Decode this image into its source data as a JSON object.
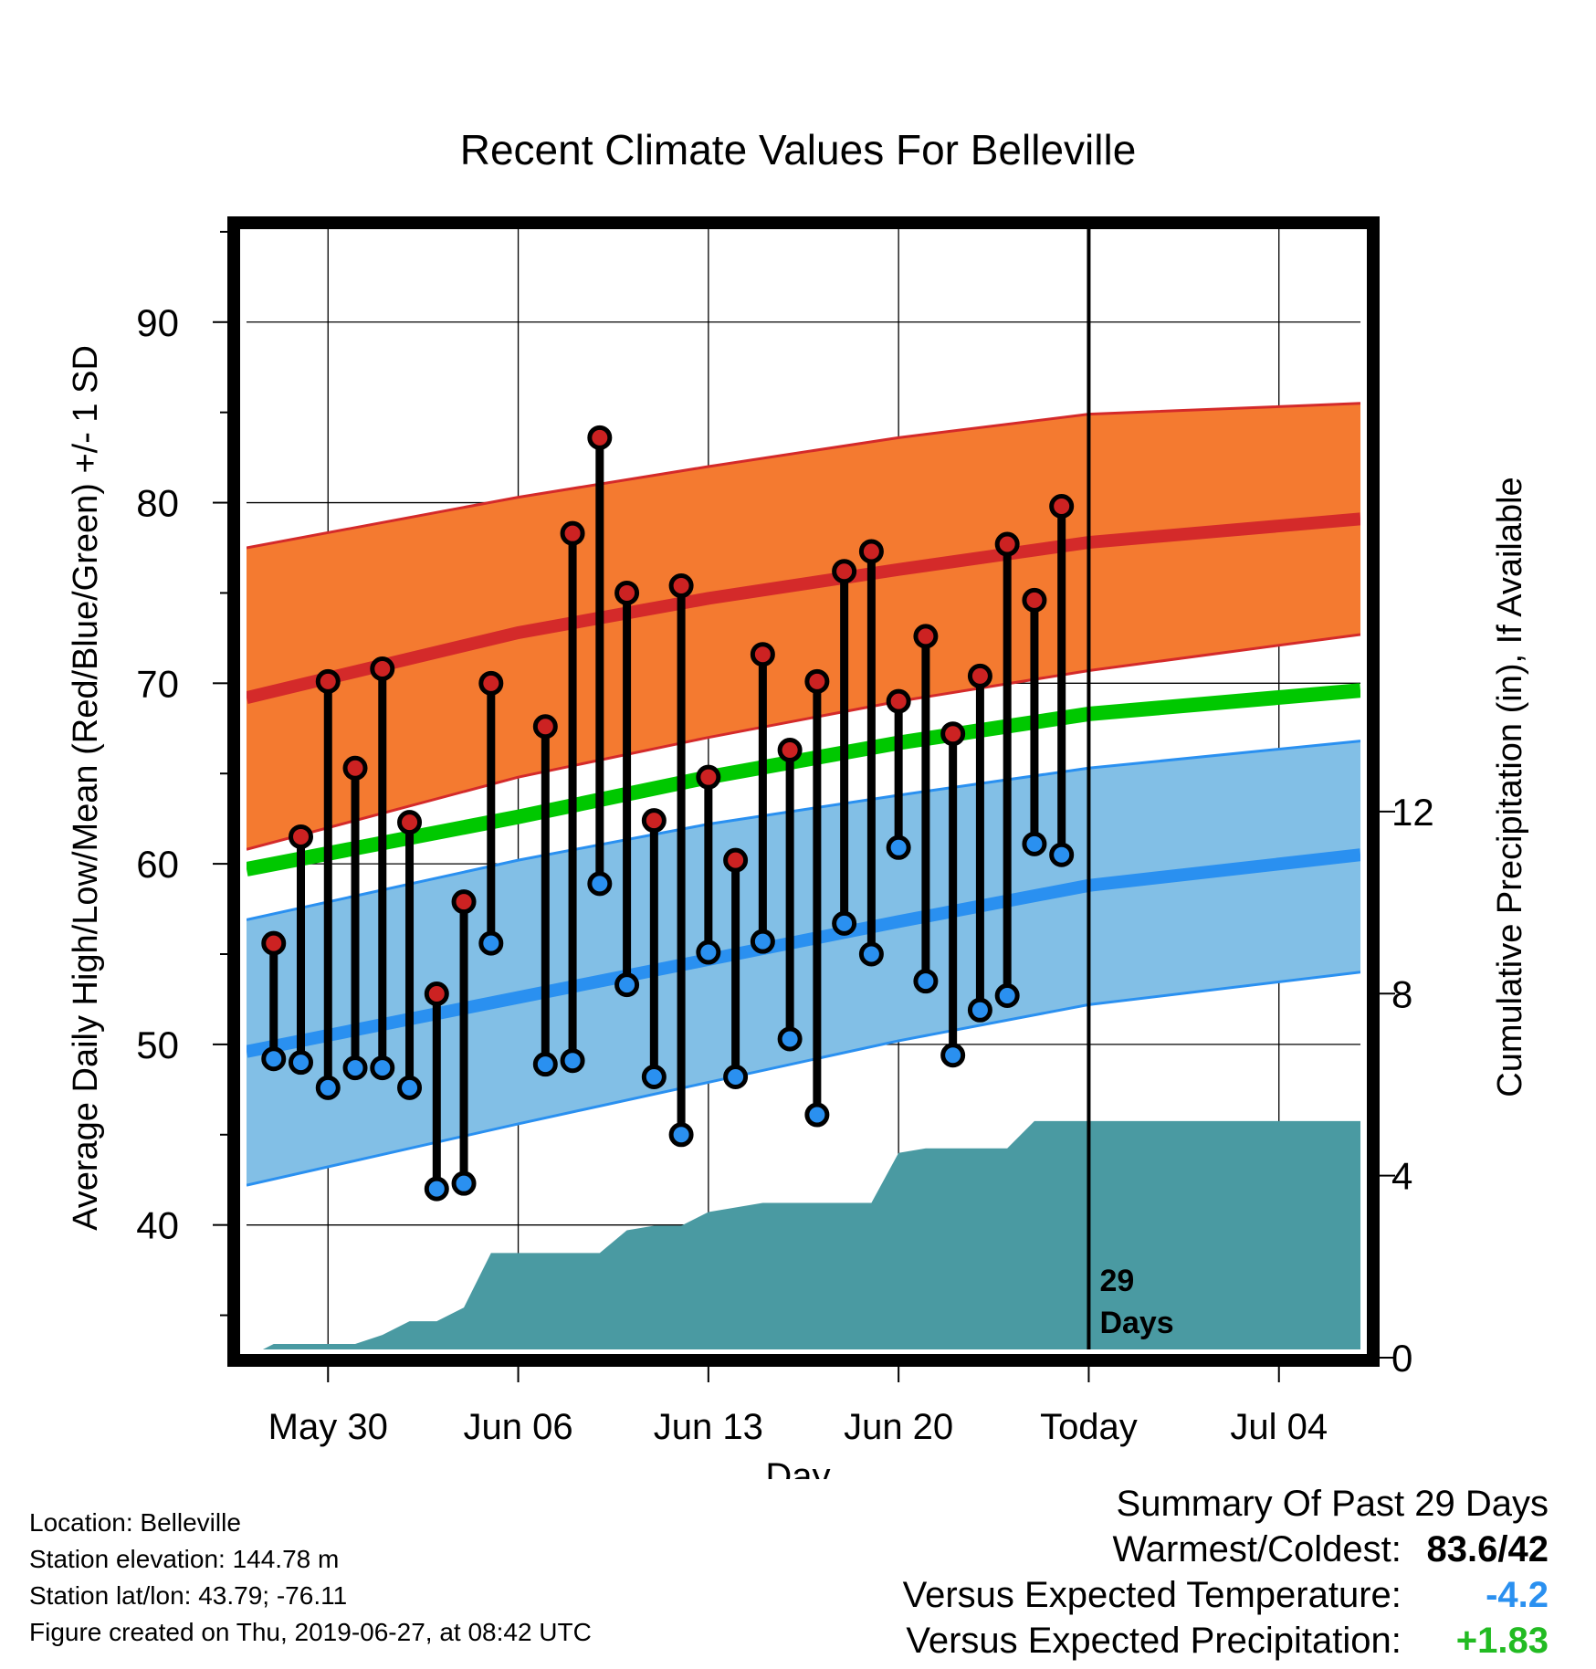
{
  "chart_data": {
    "type": "line",
    "title": "Recent Climate Values For Belleville",
    "xlabel": "Day",
    "ylabel": "Average Daily High/Low/Mean (Red/Blue/Green) +/- 1 SD",
    "y2label": "Cumulative Precipitation (in), If Available",
    "xlim": [
      "2019-05-27",
      "2019-07-07"
    ],
    "ylim": [
      32.5,
      95.5
    ],
    "y2lim": [
      0,
      25
    ],
    "x_ticks": [
      "2019-05-30",
      "2019-06-06",
      "2019-06-13",
      "2019-06-20",
      "2019-06-27",
      "2019-07-04"
    ],
    "x_tick_labels": [
      "May 30",
      "Jun 06",
      "Jun 13",
      "Jun 20",
      "Today",
      "Jul 04"
    ],
    "y_ticks": [
      40,
      50,
      60,
      70,
      80,
      90
    ],
    "y2_ticks": [
      0,
      4,
      8,
      12
    ],
    "grid": true,
    "today": "2019-06-27",
    "today_label": [
      "29",
      "Days"
    ],
    "colors": {
      "high_band": "#f47a30",
      "high_mean": "#d42a2a",
      "low_band": "#82bfe6",
      "low_mean": "#2a90f0",
      "mean": "#00c800",
      "precip": "#4a9aa2",
      "high_marker": "#cc2222",
      "low_marker": "#2a90f0"
    },
    "normals": {
      "x": [
        "2019-05-27",
        "2019-06-06",
        "2019-06-13",
        "2019-06-20",
        "2019-06-27",
        "2019-07-07"
      ],
      "high_upper": [
        77.5,
        80.3,
        82.0,
        83.6,
        84.9,
        85.5
      ],
      "high_mean": [
        69.2,
        72.8,
        74.7,
        76.3,
        77.8,
        79.1
      ],
      "high_lower": [
        60.8,
        64.8,
        67.0,
        69.0,
        70.7,
        72.7
      ],
      "mean": [
        59.7,
        62.6,
        64.8,
        66.7,
        68.3,
        69.6
      ],
      "low_upper": [
        56.9,
        60.2,
        62.2,
        63.8,
        65.3,
        66.8
      ],
      "low_mean": [
        49.6,
        52.6,
        54.7,
        56.8,
        58.8,
        60.5
      ],
      "low_lower": [
        42.2,
        45.6,
        47.9,
        50.2,
        52.2,
        54.0
      ]
    },
    "series": [
      {
        "name": "High",
        "x": [
          "2019-05-28",
          "2019-05-29",
          "2019-05-30",
          "2019-05-31",
          "2019-06-01",
          "2019-06-02",
          "2019-06-03",
          "2019-06-04",
          "2019-06-05",
          "2019-06-06",
          "2019-06-07",
          "2019-06-08",
          "2019-06-09",
          "2019-06-10",
          "2019-06-11",
          "2019-06-12",
          "2019-06-13",
          "2019-06-14",
          "2019-06-15",
          "2019-06-16",
          "2019-06-17",
          "2019-06-18",
          "2019-06-19",
          "2019-06-20",
          "2019-06-21",
          "2019-06-22",
          "2019-06-23",
          "2019-06-24",
          "2019-06-25",
          "2019-06-26"
        ],
        "values": [
          55.6,
          61.5,
          70.1,
          65.3,
          70.8,
          62.3,
          52.8,
          57.9,
          70.0,
          null,
          67.6,
          78.3,
          83.6,
          75.0,
          62.4,
          75.4,
          64.8,
          60.2,
          71.6,
          66.3,
          70.1,
          76.2,
          77.3,
          69.0,
          72.6,
          67.2,
          70.4,
          77.7,
          74.6,
          79.8
        ]
      },
      {
        "name": "Low",
        "x": [
          "2019-05-28",
          "2019-05-29",
          "2019-05-30",
          "2019-05-31",
          "2019-06-01",
          "2019-06-02",
          "2019-06-03",
          "2019-06-04",
          "2019-06-05",
          "2019-06-06",
          "2019-06-07",
          "2019-06-08",
          "2019-06-09",
          "2019-06-10",
          "2019-06-11",
          "2019-06-12",
          "2019-06-13",
          "2019-06-14",
          "2019-06-15",
          "2019-06-16",
          "2019-06-17",
          "2019-06-18",
          "2019-06-19",
          "2019-06-20",
          "2019-06-21",
          "2019-06-22",
          "2019-06-23",
          "2019-06-24",
          "2019-06-25",
          "2019-06-26"
        ],
        "values": [
          49.2,
          49.0,
          47.6,
          48.7,
          48.7,
          47.6,
          42.0,
          42.3,
          55.6,
          null,
          48.9,
          49.1,
          58.9,
          53.3,
          48.2,
          45.0,
          55.1,
          48.2,
          55.7,
          50.3,
          46.1,
          56.7,
          55.0,
          60.9,
          53.5,
          49.4,
          51.9,
          52.7,
          61.1,
          60.5
        ]
      }
    ],
    "precip": {
      "x": [
        "2019-05-27",
        "2019-05-28",
        "2019-05-29",
        "2019-05-30",
        "2019-05-31",
        "2019-06-01",
        "2019-06-02",
        "2019-06-03",
        "2019-06-04",
        "2019-06-05",
        "2019-06-06",
        "2019-06-07",
        "2019-06-08",
        "2019-06-09",
        "2019-06-10",
        "2019-06-11",
        "2019-06-12",
        "2019-06-13",
        "2019-06-14",
        "2019-06-15",
        "2019-06-16",
        "2019-06-17",
        "2019-06-18",
        "2019-06-19",
        "2019-06-20",
        "2019-06-21",
        "2019-06-22",
        "2019-06-23",
        "2019-06-24",
        "2019-06-25",
        "2019-07-07"
      ],
      "values": [
        0,
        0.3,
        0.3,
        0.3,
        0.3,
        0.5,
        0.8,
        0.8,
        1.1,
        2.3,
        2.3,
        2.3,
        2.3,
        2.3,
        2.8,
        2.9,
        2.9,
        3.2,
        3.3,
        3.4,
        3.4,
        3.4,
        3.4,
        3.4,
        4.5,
        4.6,
        4.6,
        4.6,
        4.6,
        5.2,
        5.2
      ]
    }
  },
  "info": {
    "location": "Location: Belleville",
    "elevation": "Station elevation: 144.78 m",
    "latlon": "Station lat/lon: 43.79; -76.11",
    "created": "Figure created on Thu, 2019-06-27, at 08:42 UTC"
  },
  "summary": {
    "title": "Summary Of Past 29 Days",
    "warmest_coldest_label": "Warmest/Coldest:",
    "warmest_coldest_value": "83.6/42",
    "temp_label": "Versus Expected Temperature:",
    "temp_value": "-4.2",
    "temp_color": "#2a90f0",
    "precip_label": "Versus Expected Precipitation:",
    "precip_value": "+1.83",
    "precip_color": "#22bb22"
  }
}
